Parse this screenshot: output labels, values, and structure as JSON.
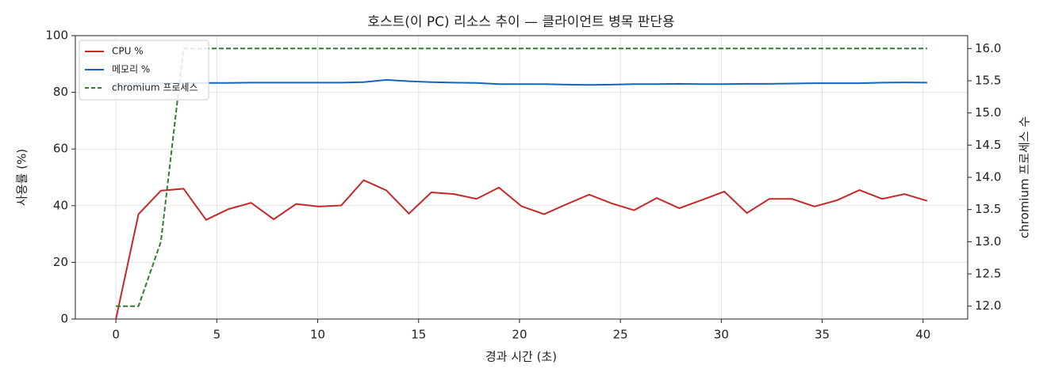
{
  "chart_data": {
    "type": "line",
    "title": "호스트(이 PC) 리소스 추이 — 클라이언트 병목 판단용",
    "x_label": "경과 시간 (초)",
    "y_label": "사용률 (%)",
    "y2_label": "chromium 프로세스 수",
    "x": [
      0,
      1.12,
      2.23,
      3.35,
      4.47,
      5.58,
      6.7,
      7.82,
      8.93,
      10.05,
      11.17,
      12.28,
      13.4,
      14.52,
      15.63,
      16.75,
      17.87,
      18.98,
      20.1,
      21.22,
      22.33,
      23.45,
      24.57,
      25.68,
      26.8,
      27.92,
      29.03,
      30.15,
      31.27,
      32.38,
      33.5,
      34.62,
      35.73,
      36.85,
      37.97,
      39.08,
      40.2
    ],
    "series": [
      {
        "name": "CPU %",
        "color": "#c62828",
        "dash": false,
        "values": [
          0,
          37,
          45.3,
          46,
          35,
          38.8,
          41,
          35.2,
          40.6,
          39.7,
          40.1,
          49,
          45.4,
          37.2,
          44.7,
          44.1,
          42.4,
          46.4,
          39.8,
          37,
          40.5,
          43.9,
          40.8,
          38.4,
          42.7,
          39.1,
          42,
          45,
          37.4,
          42.4,
          42.4,
          39.7,
          41.9,
          45.5,
          42.4,
          44.1,
          41.7
        ]
      },
      {
        "name": "메모리 %",
        "color": "#1565c0",
        "dash": false,
        "values": [
          83.0,
          83.1,
          83.2,
          83.2,
          83.3,
          83.3,
          83.4,
          83.4,
          83.4,
          83.4,
          83.4,
          83.6,
          84.4,
          83.9,
          83.6,
          83.4,
          83.3,
          82.9,
          82.9,
          82.9,
          82.7,
          82.6,
          82.7,
          82.9,
          82.9,
          83.0,
          82.9,
          82.9,
          83.0,
          83.0,
          83.1,
          83.2,
          83.2,
          83.2,
          83.4,
          83.5,
          83.4
        ]
      },
      {
        "name": "chromium 프로세스",
        "color": "#2e7d32",
        "dash": true,
        "axis": "y2",
        "values": [
          12,
          12,
          13,
          16,
          16,
          16,
          16,
          16,
          16,
          16,
          16,
          16,
          16,
          16,
          16,
          16,
          16,
          16,
          16,
          16,
          16,
          16,
          16,
          16,
          16,
          16,
          16,
          16,
          16,
          16,
          16,
          16,
          16,
          16,
          16,
          16,
          16
        ]
      }
    ],
    "xlim": [
      -2.01,
      42.21
    ],
    "xticks": [
      0,
      5,
      10,
      15,
      20,
      25,
      30,
      35,
      40
    ],
    "ylim": [
      0,
      100
    ],
    "yticks": [
      0,
      20,
      40,
      60,
      80,
      100
    ],
    "y2lim": [
      11.8,
      16.2
    ],
    "y2ticks": [
      {
        "value": 12,
        "label": "12.0"
      },
      12.5,
      {
        "value": 13,
        "label": "13.0"
      },
      13.5,
      {
        "value": 14,
        "label": "14.0"
      },
      14.5,
      {
        "value": 15,
        "label": "15.0"
      },
      15.5,
      {
        "value": 16,
        "label": "16.0"
      }
    ],
    "grid": true,
    "legend_position": "upper left"
  }
}
